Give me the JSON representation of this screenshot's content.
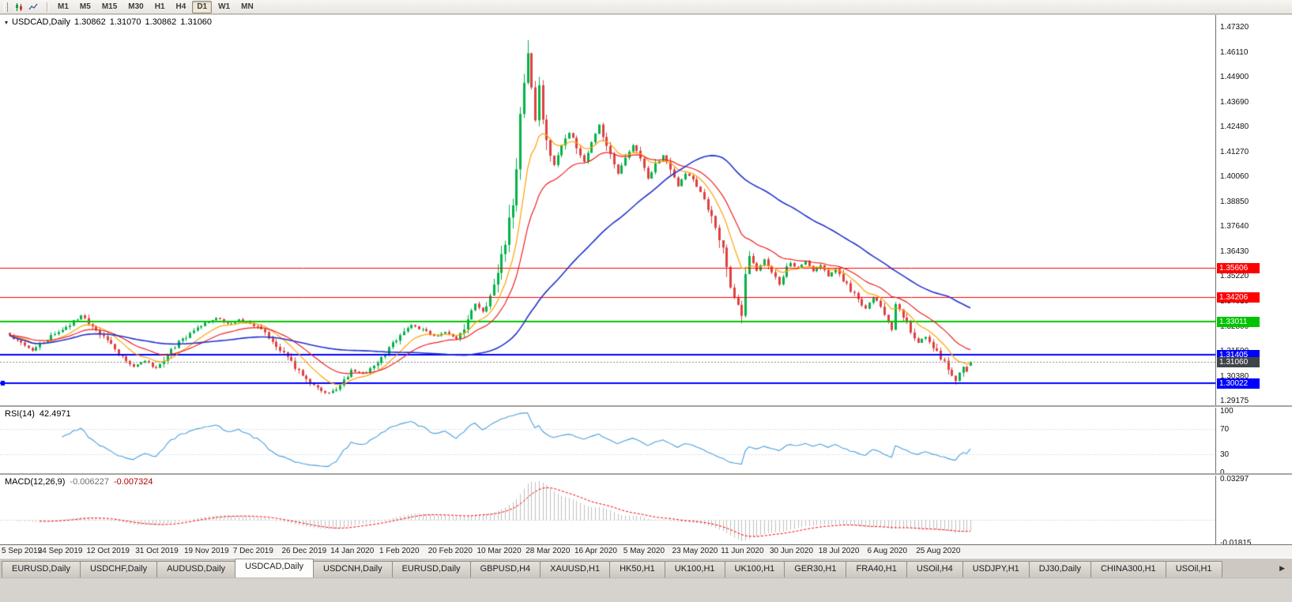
{
  "toolbar": {
    "timeframe_buttons": [
      "M1",
      "M5",
      "M15",
      "M30",
      "H1",
      "H4",
      "D1",
      "W1",
      "MN"
    ],
    "active_timeframe": "D1"
  },
  "chart": {
    "title_symbol": "USDCAD,Daily",
    "ohlc": {
      "open": "1.30862",
      "high": "1.31070",
      "low": "1.30862",
      "close": "1.31060"
    },
    "axis_top_price": 1.4732,
    "axis_bottom_price": 1.29175,
    "price_axis_labels": [
      "1.47320",
      "1.46110",
      "1.44900",
      "1.43690",
      "1.42480",
      "1.41270",
      "1.40060",
      "1.38850",
      "1.37640",
      "1.36430",
      "1.35220",
      "1.34010",
      "1.32800",
      "1.31590",
      "1.30380",
      "1.29175"
    ],
    "levels": [
      {
        "price": 1.35606,
        "label": "1.35606",
        "color": "#ff0000",
        "width": 1
      },
      {
        "price": 1.34206,
        "label": "1.34206",
        "color": "#ff0000",
        "width": 1
      },
      {
        "price": 1.33011,
        "label": "1.33011",
        "color": "#00c400",
        "width": 2
      },
      {
        "price": 1.31405,
        "label": "1.31405",
        "color": "#0000ff",
        "width": 2
      },
      {
        "price": 1.30022,
        "label": "1.30022",
        "color": "#0000ff",
        "width": 2,
        "handle": true
      }
    ],
    "current_price": {
      "value": 1.3106,
      "label": "1.31060",
      "tag_color": "#3f4448"
    },
    "colors": {
      "up": "#00b348",
      "down": "#df4040",
      "bg": "#ffffff"
    }
  },
  "chart_data": {
    "type": "candlestick",
    "symbol": "USDCAD",
    "timeframe": "Daily",
    "y_range": [
      1.29175,
      1.4732
    ],
    "num_candles": 257,
    "x_tick_labels": [
      "5 Sep 2019",
      "24 Sep 2019",
      "12 Oct 2019",
      "31 Oct 2019",
      "19 Nov 2019",
      "7 Dec 2019",
      "26 Dec 2019",
      "14 Jan 2020",
      "1 Feb 2020",
      "20 Feb 2020",
      "10 Mar 2020",
      "28 Mar 2020",
      "16 Apr 2020",
      "5 May 2020",
      "23 May 2020",
      "11 Jun 2020",
      "30 Jun 2020",
      "18 Jul 2020",
      "6 Aug 2020",
      "25 Aug 2020"
    ],
    "last_candle_ohlc": {
      "open": 1.30862,
      "high": 1.3107,
      "low": 1.30862,
      "close": 1.3106
    },
    "extremes": {
      "high": {
        "index": 138,
        "price": 1.4668
      },
      "low": {
        "index": 85,
        "price": 1.2951
      },
      "late_low": {
        "index": 252,
        "price": 1.2995
      }
    },
    "close_anchors": [
      [
        0,
        1.323
      ],
      [
        3,
        1.3198
      ],
      [
        6,
        1.3162
      ],
      [
        9,
        1.3205
      ],
      [
        13,
        1.3252
      ],
      [
        16,
        1.3288
      ],
      [
        19,
        1.333
      ],
      [
        22,
        1.3282
      ],
      [
        26,
        1.3205
      ],
      [
        29,
        1.314
      ],
      [
        33,
        1.3085
      ],
      [
        36,
        1.3112
      ],
      [
        39,
        1.3072
      ],
      [
        42,
        1.3142
      ],
      [
        45,
        1.3198
      ],
      [
        48,
        1.3242
      ],
      [
        52,
        1.3292
      ],
      [
        55,
        1.3322
      ],
      [
        58,
        1.3288
      ],
      [
        61,
        1.3312
      ],
      [
        65,
        1.3282
      ],
      [
        68,
        1.3248
      ],
      [
        71,
        1.3182
      ],
      [
        74,
        1.3122
      ],
      [
        77,
        1.3062
      ],
      [
        80,
        1.3002
      ],
      [
        83,
        1.2962
      ],
      [
        85,
        1.2952
      ],
      [
        88,
        1.299
      ],
      [
        91,
        1.306
      ],
      [
        95,
        1.305
      ],
      [
        99,
        1.313
      ],
      [
        104,
        1.323
      ],
      [
        107,
        1.3285
      ],
      [
        110,
        1.326
      ],
      [
        113,
        1.323
      ],
      [
        116,
        1.325
      ],
      [
        119,
        1.322
      ],
      [
        122,
        1.33
      ],
      [
        124,
        1.339
      ],
      [
        126,
        1.335
      ],
      [
        128,
        1.342
      ],
      [
        130,
        1.356
      ],
      [
        132,
        1.367
      ],
      [
        133,
        1.378
      ],
      [
        134,
        1.392
      ],
      [
        135,
        1.408
      ],
      [
        136,
        1.425
      ],
      [
        137,
        1.448
      ],
      [
        138,
        1.46
      ],
      [
        139,
        1.444
      ],
      [
        140,
        1.429
      ],
      [
        141,
        1.442
      ],
      [
        142,
        1.43
      ],
      [
        143,
        1.416
      ],
      [
        145,
        1.406
      ],
      [
        147,
        1.414
      ],
      [
        149,
        1.422
      ],
      [
        151,
        1.415
      ],
      [
        153,
        1.408
      ],
      [
        155,
        1.418
      ],
      [
        157,
        1.426
      ],
      [
        158,
        1.419
      ],
      [
        160,
        1.41
      ],
      [
        162,
        1.402
      ],
      [
        164,
        1.409
      ],
      [
        166,
        1.416
      ],
      [
        168,
        1.408
      ],
      [
        170,
        1.4
      ],
      [
        172,
        1.406
      ],
      [
        174,
        1.411
      ],
      [
        176,
        1.403
      ],
      [
        178,
        1.396
      ],
      [
        180,
        1.402
      ],
      [
        182,
        1.399
      ],
      [
        184,
        1.394
      ],
      [
        186,
        1.386
      ],
      [
        188,
        1.378
      ],
      [
        190,
        1.364
      ],
      [
        192,
        1.348
      ],
      [
        194,
        1.338
      ],
      [
        195,
        1.333
      ],
      [
        196,
        1.352
      ],
      [
        197,
        1.362
      ],
      [
        199,
        1.355
      ],
      [
        201,
        1.36
      ],
      [
        203,
        1.354
      ],
      [
        205,
        1.348
      ],
      [
        207,
        1.356
      ],
      [
        208,
        1.358
      ],
      [
        210,
        1.356
      ],
      [
        212,
        1.36
      ],
      [
        214,
        1.355
      ],
      [
        216,
        1.358
      ],
      [
        218,
        1.352
      ],
      [
        220,
        1.356
      ],
      [
        222,
        1.35
      ],
      [
        224,
        1.345
      ],
      [
        226,
        1.341
      ],
      [
        228,
        1.336
      ],
      [
        230,
        1.342
      ],
      [
        232,
        1.338
      ],
      [
        234,
        1.33
      ],
      [
        235,
        1.326
      ],
      [
        236,
        1.339
      ],
      [
        238,
        1.333
      ],
      [
        240,
        1.325
      ],
      [
        242,
        1.32
      ],
      [
        244,
        1.323
      ],
      [
        246,
        1.318
      ],
      [
        248,
        1.313
      ],
      [
        250,
        1.307
      ],
      [
        251,
        1.304
      ],
      [
        252,
        1.301
      ],
      [
        253,
        1.305
      ],
      [
        254,
        1.308
      ],
      [
        255,
        1.306
      ],
      [
        256,
        1.3106
      ]
    ],
    "moving_averages": [
      {
        "name": "fast-ma",
        "period": 10,
        "color": "#ffa000"
      },
      {
        "name": "medium-ma",
        "period": 21,
        "color": "#ee2222"
      },
      {
        "name": "slow-ma",
        "period": 55,
        "color": "#2233cc"
      }
    ],
    "indicators": [
      {
        "name": "RSI",
        "period": 14,
        "current_value": 42.4971
      },
      {
        "name": "MACD",
        "fast": 12,
        "slow": 26,
        "signal": 9,
        "macd_value": -0.006227,
        "signal_value": -0.007324
      }
    ]
  },
  "rsi_panel": {
    "name_label": "RSI(14)",
    "value_label": "42.4971",
    "axis_labels": [
      "100",
      "70",
      "30",
      "0"
    ],
    "axis_values": [
      100,
      70,
      30,
      0
    ],
    "level_lines": [
      70,
      30
    ],
    "line_color": "#4a9fdc"
  },
  "macd_panel": {
    "name_label": "MACD(12,26,9)",
    "macd_label": "-0.006227",
    "signal_label": "-0.007324",
    "axis_labels": [
      "0.03297",
      "-0.01815"
    ],
    "axis_max": 0.03297,
    "axis_min": -0.01815,
    "hist_color": "#bfbfbf",
    "signal_color": "#ff0000"
  },
  "date_axis": {
    "labels": [
      "5 Sep 2019",
      "24 Sep 2019",
      "12 Oct 2019",
      "31 Oct 2019",
      "19 Nov 2019",
      "7 Dec 2019",
      "26 Dec 2019",
      "14 Jan 2020",
      "1 Feb 2020",
      "20 Feb 2020",
      "10 Mar 2020",
      "28 Mar 2020",
      "16 Apr 2020",
      "5 May 2020",
      "23 May 2020",
      "11 Jun 2020",
      "30 Jun 2020",
      "18 Jul 2020",
      "6 Aug 2020",
      "25 Aug 2020"
    ]
  },
  "tabs": {
    "items": [
      "EURUSD,Daily",
      "USDCHF,Daily",
      "AUDUSD,Daily",
      "USDCAD,Daily",
      "USDCNH,Daily",
      "EURUSD,Daily",
      "GBPUSD,H4",
      "XAUUSD,H1",
      "HK50,H1",
      "UK100,H1",
      "UK100,H1",
      "GER30,H1",
      "FRA40,H1",
      "USOil,H4",
      "USDJPY,H1",
      "DJ30,Daily",
      "CHINA300,H1",
      "USOil,H1"
    ],
    "active_index": 3,
    "scroll_right_icon": "▶"
  }
}
